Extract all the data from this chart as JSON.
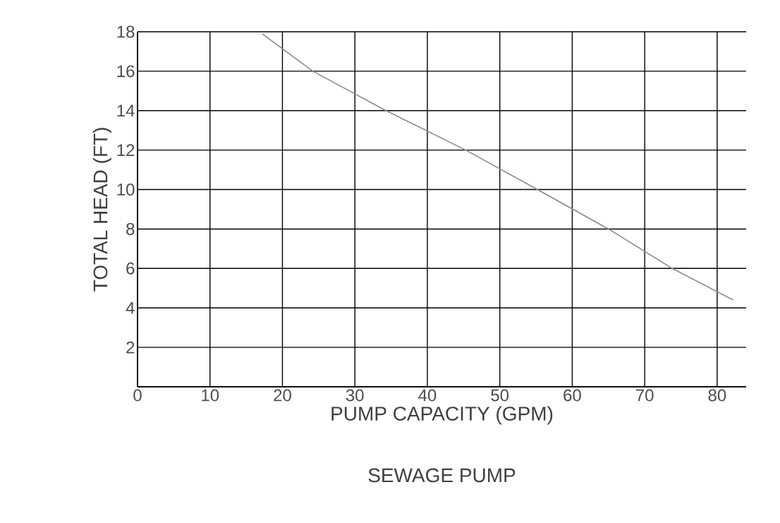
{
  "chart_data": {
    "type": "line",
    "title": "SEWAGE PUMP",
    "xlabel": "PUMP CAPACITY (GPM)",
    "ylabel": "TOTAL HEAD (FT)",
    "x": [
      17.2,
      24.2,
      34.3,
      45.3,
      55.2,
      65,
      73.8,
      82.2
    ],
    "series": [
      {
        "color": "#8a8a8a",
        "values": [
          17.9,
          16,
          14,
          12,
          10,
          8,
          6,
          4.4
        ]
      }
    ],
    "xlim": [
      0,
      84
    ],
    "ylim": [
      0,
      18
    ],
    "xticks": [
      0,
      10,
      20,
      30,
      40,
      50,
      60,
      70,
      80
    ],
    "yticks": [
      {
        "value": 0,
        "label": null
      },
      2,
      4,
      6,
      8,
      10,
      12,
      14,
      16,
      18
    ],
    "grid": true,
    "marker": "none",
    "line_style": "solid"
  }
}
